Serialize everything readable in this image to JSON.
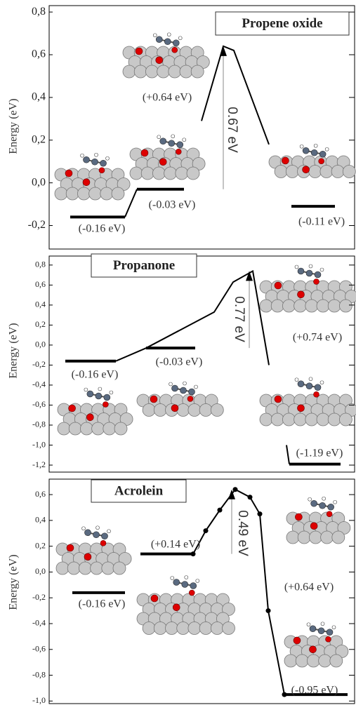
{
  "chart_data": [
    {
      "type": "line",
      "title": "Propene oxide",
      "ylabel": "Energy (eV)",
      "ylim": [
        -0.31,
        0.83
      ],
      "yticks": [
        {
          "value": 0.8,
          "label": "0,8"
        },
        {
          "value": 0.6,
          "label": "0,6"
        },
        {
          "value": 0.4,
          "label": "0,4"
        },
        {
          "value": 0.2,
          "label": "0,2"
        },
        {
          "value": 0.0,
          "label": "0,0"
        },
        {
          "value": -0.2,
          "label": "-0,2"
        }
      ],
      "values": [
        -0.16,
        -0.03,
        -0.11
      ],
      "value_labels": [
        "(-0.16 eV)",
        "(-0.03 eV)",
        "(-0.11 eV)"
      ],
      "curve": [
        -0.16,
        -0.03,
        null,
        0.29,
        0.64,
        0.62,
        0.18
      ],
      "annotations": [
        "(+0.64 eV)"
      ],
      "barrier": "0.67 eV",
      "markers": false
    },
    {
      "type": "line",
      "title": "Propanone",
      "ylabel": "Energy (eV)",
      "ylim": [
        -1.27,
        0.89
      ],
      "yticks": [
        {
          "value": 0.8,
          "label": "0,8"
        },
        {
          "value": 0.6,
          "label": "0,6"
        },
        {
          "value": 0.4,
          "label": "0,4"
        },
        {
          "value": 0.2,
          "label": "0,2"
        },
        {
          "value": 0.0,
          "label": "0,0"
        },
        {
          "value": -0.2,
          "label": "-0,2"
        },
        {
          "value": -0.4,
          "label": "-0,4"
        },
        {
          "value": -0.6,
          "label": "-0,6"
        },
        {
          "value": -0.8,
          "label": "-0,8"
        },
        {
          "value": -1.0,
          "label": "-1,0"
        },
        {
          "value": -1.2,
          "label": "-1,2"
        }
      ],
      "values": [
        -0.16,
        -0.03,
        -1.19
      ],
      "value_labels": [
        "(-0.16 eV)",
        "(-0.03 eV)",
        "(-1.19 eV)"
      ],
      "curve": [
        -0.16,
        -0.03,
        0.33,
        0.63,
        0.74,
        -0.2,
        null,
        -1.0,
        -1.19
      ],
      "annotations": [
        "(+0.74 eV)"
      ],
      "barrier": "0.77 eV",
      "markers": false
    },
    {
      "type": "line",
      "title": "Acrolein",
      "ylabel": "Energy (eV)",
      "ylim": [
        -1.02,
        0.72
      ],
      "yticks": [
        {
          "value": 0.6,
          "label": "0,6"
        },
        {
          "value": 0.4,
          "label": "0,4"
        },
        {
          "value": 0.2,
          "label": "0,2"
        },
        {
          "value": 0.0,
          "label": "0,0"
        },
        {
          "value": -0.2,
          "label": "-0,2"
        },
        {
          "value": -0.4,
          "label": "-0,4"
        },
        {
          "value": -0.6,
          "label": "-0,6"
        },
        {
          "value": -0.8,
          "label": "-0,8"
        },
        {
          "value": -1.0,
          "label": "-1,0"
        }
      ],
      "values": [
        -0.16,
        0.14,
        -0.95
      ],
      "value_labels": [
        "(-0.16 eV)",
        "(+0.14 eV)",
        "(-0.95 eV)"
      ],
      "curve": [
        0.14,
        0.32,
        0.48,
        0.64,
        0.58,
        0.45,
        -0.3,
        -0.95
      ],
      "annotations": [
        "(+0.64 eV)"
      ],
      "barrier": "0.49 eV",
      "markers": true
    }
  ]
}
